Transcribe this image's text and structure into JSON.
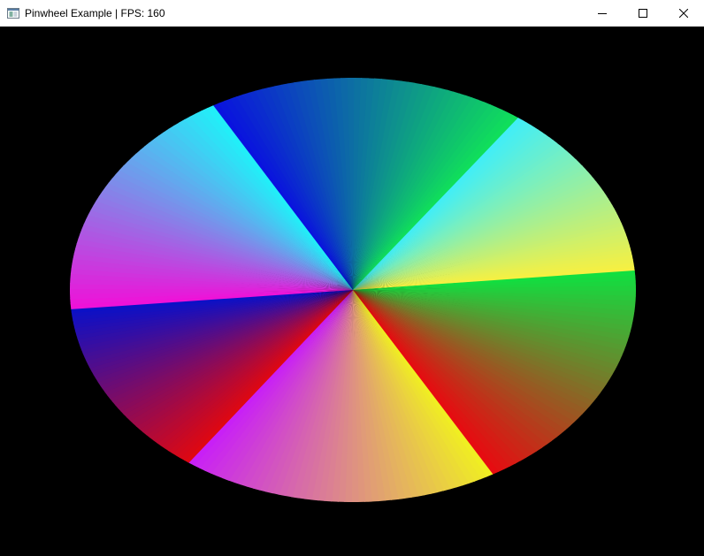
{
  "window": {
    "title": "Pinwheel Example | FPS: 160",
    "icon": "app-window-icon",
    "buttons": [
      {
        "name": "minimize",
        "icon": "minimize-icon"
      },
      {
        "name": "maximize",
        "icon": "maximize-icon"
      },
      {
        "name": "close",
        "icon": "close-icon"
      }
    ]
  },
  "pinwheel": {
    "background": "#000000",
    "blades": [
      {
        "edge_start": "#0a10e0",
        "edge_end": "#10e05a"
      },
      {
        "edge_start": "#40eef8",
        "edge_end": "#f8f040"
      },
      {
        "edge_start": "#10e040",
        "edge_end": "#e80a10"
      },
      {
        "edge_start": "#f0f020",
        "edge_end": "#c81ef8"
      },
      {
        "edge_start": "#e00810",
        "edge_end": "#0a10c8"
      },
      {
        "edge_start": "#f010d8",
        "edge_end": "#20f0f8"
      }
    ]
  }
}
